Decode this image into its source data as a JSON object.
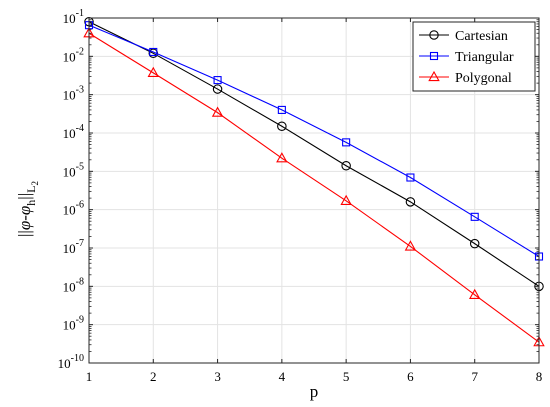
{
  "chart_data": {
    "type": "line",
    "title": "",
    "xlabel": "p",
    "ylabel": {
      "prefix": "||",
      "phi1": "φ",
      "dash": "-",
      "phi2": "φ",
      "sub_h": "h",
      "mid": "||",
      "sub_L": "L",
      "sub_2": "2"
    },
    "x": [
      1,
      2,
      3,
      4,
      5,
      6,
      7,
      8
    ],
    "xlim": [
      1,
      8
    ],
    "ylim": [
      1e-10,
      0.1
    ],
    "yscale": "log",
    "grid": true,
    "legend_position": "top-right",
    "x_tick_labels": [
      "1",
      "2",
      "3",
      "4",
      "5",
      "6",
      "7",
      "8"
    ],
    "y_ticks": [
      {
        "base": "10",
        "exp": "-1"
      },
      {
        "base": "10",
        "exp": "-2"
      },
      {
        "base": "10",
        "exp": "-3"
      },
      {
        "base": "10",
        "exp": "-4"
      },
      {
        "base": "10",
        "exp": "-5"
      },
      {
        "base": "10",
        "exp": "-6"
      },
      {
        "base": "10",
        "exp": "-7"
      },
      {
        "base": "10",
        "exp": "-8"
      },
      {
        "base": "10",
        "exp": "-9"
      },
      {
        "base": "10",
        "exp": "-10"
      }
    ],
    "series": [
      {
        "name": "Cartesian",
        "color": "#000000",
        "marker": "circle",
        "values": [
          0.08,
          0.012,
          0.0014,
          0.00015,
          1.4e-05,
          1.6e-06,
          1.3e-07,
          1e-08
        ]
      },
      {
        "name": "Triangular",
        "color": "#0000ff",
        "marker": "square",
        "values": [
          0.065,
          0.013,
          0.0024,
          0.0004,
          5.7e-05,
          6.9e-06,
          6.5e-07,
          6e-08
        ]
      },
      {
        "name": "Polygonal",
        "color": "#ff0000",
        "marker": "triangle",
        "values": [
          0.04,
          0.0037,
          0.00034,
          2.2e-05,
          1.7e-06,
          1.1e-07,
          6e-09,
          3.5e-10
        ]
      }
    ]
  }
}
